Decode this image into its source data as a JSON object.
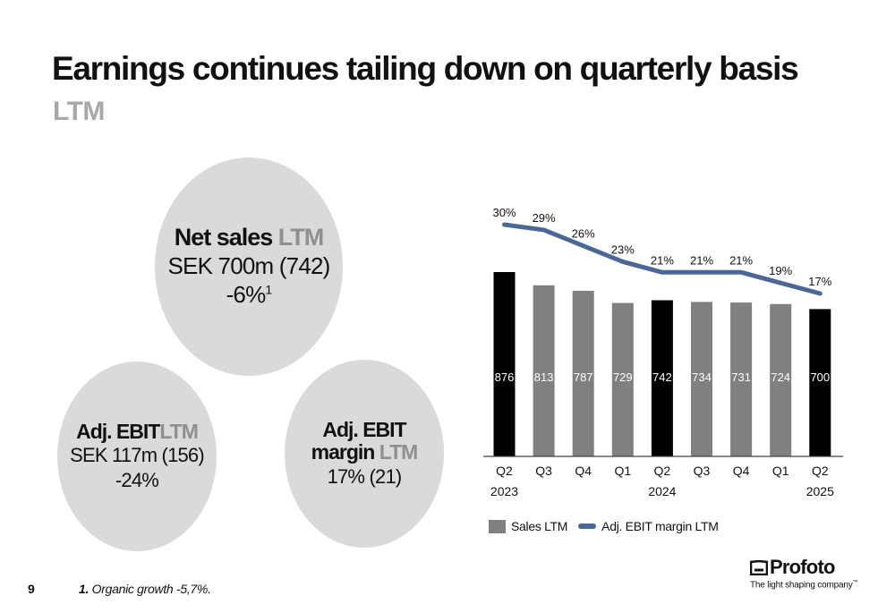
{
  "page": {
    "title": "Earnings continues tailing down on quarterly basis",
    "subtitle": "LTM",
    "page_number": "9",
    "footnote_marker": "1.",
    "footnote_text": "Organic growth -5,7%.",
    "logo_text": "Profoto",
    "logo_tagline": "The light shaping company",
    "logo_tm": "™"
  },
  "kpis": {
    "net_sales": {
      "label": "Net sales",
      "suffix": "LTM",
      "value": "SEK 700m (742)",
      "growth": "-6%",
      "footnote_ref": "1"
    },
    "adj_ebit": {
      "label": "Adj. EBIT",
      "suffix": "LTM",
      "value": "SEK 117m (156)",
      "growth": "-24%"
    },
    "adj_ebit_margin": {
      "label_line1": "Adj. EBIT",
      "label_line2": "margin",
      "suffix": "LTM",
      "value": "17% (21)"
    }
  },
  "chart_data": {
    "type": "bar",
    "categories": [
      "Q2",
      "Q3",
      "Q4",
      "Q1",
      "Q2",
      "Q3",
      "Q4",
      "Q1",
      "Q2"
    ],
    "year_labels": [
      "2023",
      "",
      "",
      "",
      "2024",
      "",
      "",
      "",
      "2025"
    ],
    "series": [
      {
        "name": "Sales LTM",
        "type": "bar",
        "values": [
          876,
          813,
          787,
          729,
          742,
          734,
          731,
          724,
          700
        ],
        "data_labels": [
          "876",
          "813",
          "787",
          "729",
          "742",
          "734",
          "731",
          "724",
          "700"
        ],
        "highlight": [
          true,
          false,
          false,
          false,
          true,
          false,
          false,
          false,
          true
        ]
      },
      {
        "name": "Adj. EBIT margin LTM",
        "type": "line",
        "values": [
          30,
          29,
          26,
          23,
          21,
          21,
          21,
          19,
          17
        ],
        "data_labels": [
          "30%",
          "29%",
          "26%",
          "23%",
          "21%",
          "21%",
          "21%",
          "19%",
          "17%"
        ]
      }
    ],
    "bar_ylim": [
      0,
      900
    ],
    "line_ylim": [
      0,
      35
    ],
    "grid": false,
    "legend_position": "bottom-left",
    "colors": {
      "bar_default": "#808080",
      "bar_highlight": "#000000",
      "line": "#4a6896",
      "axis": "#444444"
    }
  }
}
